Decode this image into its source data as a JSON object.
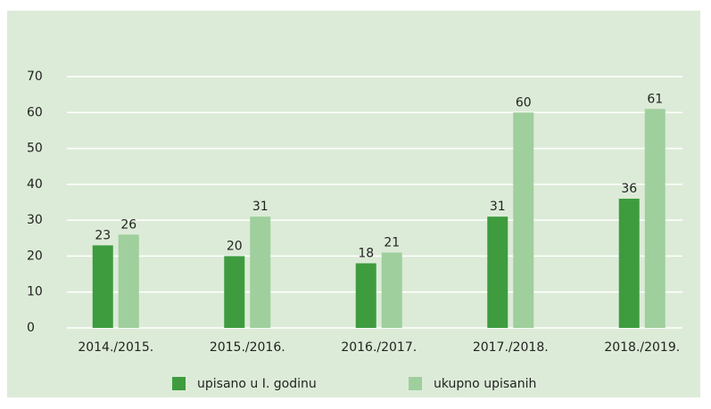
{
  "chart_data": {
    "type": "bar",
    "categories": [
      "2014./2015.",
      "2015./2016.",
      "2016./2017.",
      "2017./2018.",
      "2018./2019."
    ],
    "series": [
      {
        "name": "upisano u I. godinu",
        "color": "#3e9c3f",
        "values": [
          23,
          20,
          18,
          31,
          36
        ]
      },
      {
        "name": "ukupno upisanih",
        "color": "#9fcf9c",
        "values": [
          26,
          31,
          21,
          60,
          61
        ]
      }
    ],
    "ylim": [
      0,
      70
    ],
    "yticks": [
      0,
      10,
      20,
      30,
      40,
      50,
      60,
      70
    ],
    "grid": true,
    "legend": "bottom"
  }
}
